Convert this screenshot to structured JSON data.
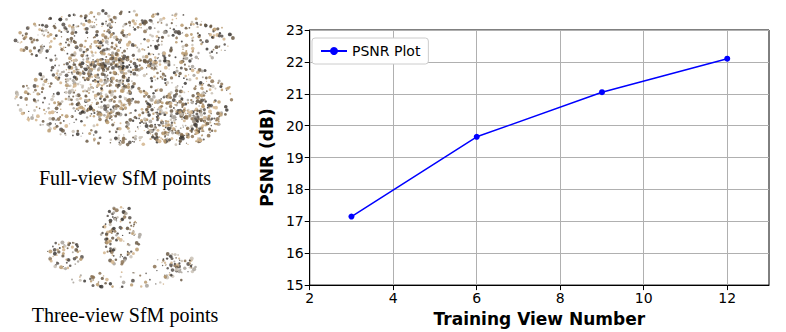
{
  "chart_data": {
    "type": "line",
    "x": [
      3,
      6,
      9,
      12
    ],
    "series": [
      {
        "name": "PSNR Plot",
        "color": "#0000ff",
        "marker": "circle",
        "values": [
          17.15,
          19.65,
          21.05,
          22.1
        ]
      }
    ],
    "x_label": "Training View Number",
    "y_label": "PSNR (dB)",
    "xlim": [
      2,
      13
    ],
    "xticks": [
      2,
      4,
      6,
      8,
      10,
      12
    ],
    "ylim": [
      15,
      23
    ],
    "yticks": [
      15,
      16,
      17,
      18,
      19,
      20,
      21,
      22,
      23
    ],
    "grid": true,
    "legend": "upper left"
  },
  "images": [
    {
      "caption": "Full-view SfM points"
    },
    {
      "caption": "Three-view SfM points"
    }
  ]
}
